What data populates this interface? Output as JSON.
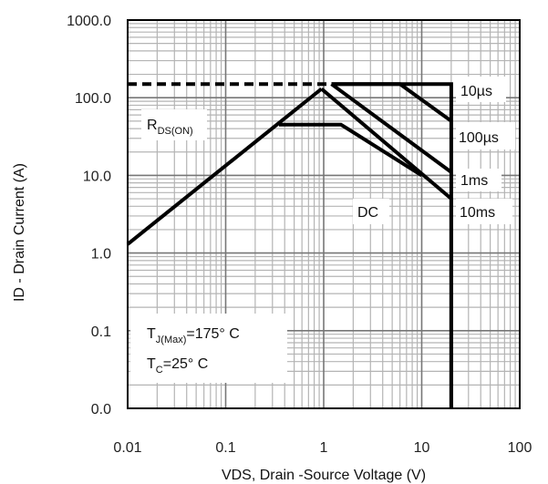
{
  "chart_data": {
    "type": "line",
    "title": "",
    "xlabel": "VDS, Drain -Source Voltage (V)",
    "ylabel": "ID - Drain Current (A)",
    "x_scale": "log",
    "y_scale": "log",
    "xlim": [
      0.01,
      100
    ],
    "ylim": [
      0.01,
      1000
    ],
    "x_tick_values": [
      0.01,
      0.1,
      1,
      10,
      100
    ],
    "x_tick_labels": [
      "0.01",
      "0.1",
      "1",
      "10",
      "100"
    ],
    "y_tick_values": [
      1000,
      100,
      10,
      1,
      0.1,
      0.01
    ],
    "y_tick_labels": [
      "1000.0",
      "100.0",
      "10.0",
      "1.0",
      "0.1",
      "0.0"
    ],
    "grid": true,
    "series": [
      {
        "name": "10µs",
        "points": [
          [
            1.2,
            150
          ],
          [
            20,
            150
          ],
          [
            20,
            0.01
          ]
        ]
      },
      {
        "name": "100µs",
        "points": [
          [
            1.2,
            150
          ],
          [
            6,
            150
          ],
          [
            20,
            50
          ]
        ]
      },
      {
        "name": "1ms",
        "points": [
          [
            1.2,
            150
          ],
          [
            20,
            11
          ]
        ]
      },
      {
        "name": "10ms",
        "points": [
          [
            0.95,
            130
          ],
          [
            20,
            5
          ],
          [
            20,
            0.01
          ]
        ]
      },
      {
        "name": "DC",
        "points": [
          [
            0.35,
            45
          ],
          [
            1.5,
            45
          ],
          [
            10,
            10
          ]
        ]
      },
      {
        "name": "RDS(ON)",
        "points": [
          [
            0.01,
            1.3
          ],
          [
            0.95,
            130
          ]
        ]
      },
      {
        "name": "current limit",
        "style": "dashed",
        "points": [
          [
            0.01,
            150
          ],
          [
            1.2,
            150
          ]
        ]
      }
    ],
    "annotations": {
      "rds_main": "R",
      "rds_sub": "DS(ON)",
      "l10us": "10µs",
      "l100us": "100µs",
      "l1ms": "1ms",
      "l10ms": "10ms",
      "ldc": "DC",
      "tj_main": "T",
      "tj_sub": "J(Max)",
      "tj_val": "=175° C",
      "tc_main": "T",
      "tc_sub": "C",
      "tc_val": "=25° C"
    }
  }
}
